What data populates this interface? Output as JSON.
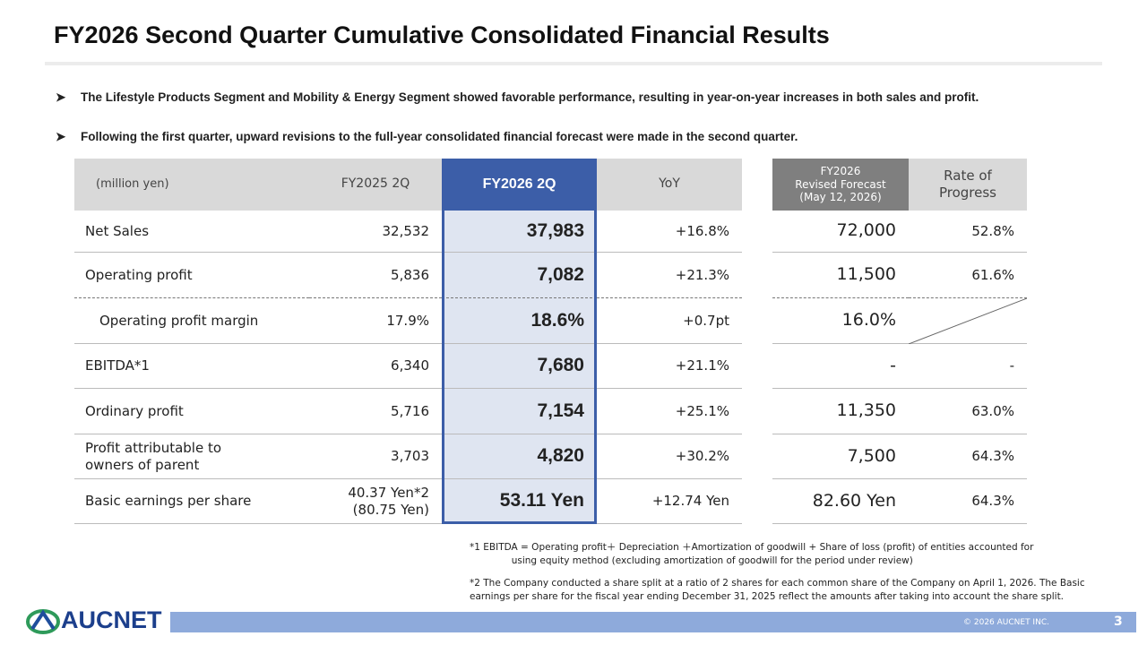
{
  "title": "FY2026 Second Quarter Cumulative Consolidated Financial Results",
  "bullets": [
    "The Lifestyle Products Segment and Mobility & Energy Segment showed favorable performance, resulting  in year-on-year increases in both sales and profit.",
    "Following the first quarter, upward revisions to the full-year consolidated financial forecast were made in the second quarter."
  ],
  "table": {
    "headers": {
      "label": "(million yen)",
      "fy2025": "FY2025 2Q",
      "fy2026": "FY2026 2Q",
      "yoy": "YoY",
      "forecast": "FY2026\nRevised Forecast\n(May 12, 2026)",
      "progress": "Rate of\nProgress"
    },
    "rows": [
      {
        "label": "Net Sales",
        "fy2025": "32,532",
        "fy2026": "37,983",
        "yoy": "+16.8%",
        "forecast": "72,000",
        "progress": "52.8%"
      },
      {
        "label": "Operating profit",
        "fy2025": "5,836",
        "fy2026": "7,082",
        "yoy": "+21.3%",
        "forecast": "11,500",
        "progress": "61.6%"
      },
      {
        "label": "Operating profit margin",
        "fy2025": "17.9%",
        "fy2026": "18.6%",
        "yoy": "+0.7pt",
        "forecast": "16.0%"
      },
      {
        "label": "EBITDA*1",
        "fy2025": "6,340",
        "fy2026": "7,680",
        "yoy": "+21.1%",
        "forecast": "-",
        "progress": "-"
      },
      {
        "label": "Ordinary profit",
        "fy2025": "5,716",
        "fy2026": "7,154",
        "yoy": "+25.1%",
        "forecast": "11,350",
        "progress": "63.0%"
      },
      {
        "label": "Profit attributable to\nowners of parent",
        "fy2025": "3,703",
        "fy2026": "4,820",
        "yoy": "+30.2%",
        "forecast": "7,500",
        "progress": "64.3%"
      },
      {
        "label": "Basic earnings per share",
        "fy2025": "40.37 Yen*2\n(80.75 Yen)",
        "fy2026": "53.11 Yen",
        "yoy": "+12.74 Yen",
        "forecast": "82.60 Yen",
        "progress": "64.3%"
      }
    ]
  },
  "footnotes": [
    "*1 EBITDA = Operating profit＋ Depreciation ＋Amortization of goodwill + Share of loss (profit) of entities accounted for\n              using equity method (excluding amortization of goodwill for the period under review)",
    "*2 The Company conducted a share split at a ratio of 2 shares for each common share of the Company on April 1, 2026. The Basic\nearnings per share for the fiscal year ending December 31, 2025 reflect the amounts after taking into account the share split."
  ],
  "footer": {
    "logo": "AUCNET",
    "copyright": "© 2026 AUCNET INC.",
    "page": "3"
  }
}
